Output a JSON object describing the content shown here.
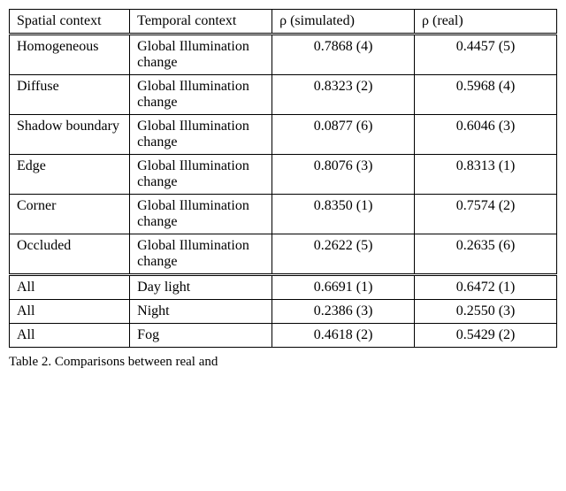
{
  "table": {
    "columns": [
      "Spatial con­text",
      "Temporal con­text",
      "ρ (simulated)",
      "ρ (real)"
    ],
    "col_widths_pct": [
      22,
      26,
      26,
      26
    ],
    "col_align": [
      "left",
      "left",
      "center",
      "center"
    ],
    "groups": [
      {
        "rows": [
          [
            "Homogeneous",
            "Global Illumi­nation change",
            "0.7868 (4)",
            "0.4457 (5)"
          ],
          [
            "Diffuse",
            "Global Illumi­nation change",
            "0.8323 (2)",
            "0.5968 (4)"
          ],
          [
            "Shadow boundary",
            "Global Illumi­nation change",
            "0.0877 (6)",
            "0.6046 (3)"
          ],
          [
            "Edge",
            "Global Illumi­nation change",
            "0.8076 (3)",
            "0.8313 (1)"
          ],
          [
            "Corner",
            "Global Illumi­nation change",
            "0.8350 (1)",
            "0.7574 (2)"
          ],
          [
            "Occluded",
            "Global Illumi­nation change",
            "0.2622 (5)",
            "0.2635 (6)"
          ]
        ]
      },
      {
        "rows": [
          [
            "All",
            "Day light",
            "0.6691 (1)",
            "0.6472 (1)"
          ],
          [
            "All",
            "Night",
            "0.2386 (3)",
            "0.2550 (3)"
          ],
          [
            "All",
            "Fog",
            "0.4618 (2)",
            "0.5429 (2)"
          ]
        ]
      }
    ],
    "border_color": "#000000",
    "background_color": "#ffffff",
    "font_family": "Times New Roman",
    "header_fontsize_pt": 12,
    "cell_fontsize_pt": 12
  },
  "caption": {
    "label": "Table 2.",
    "text_fragment": "Comparisons between real and "
  }
}
